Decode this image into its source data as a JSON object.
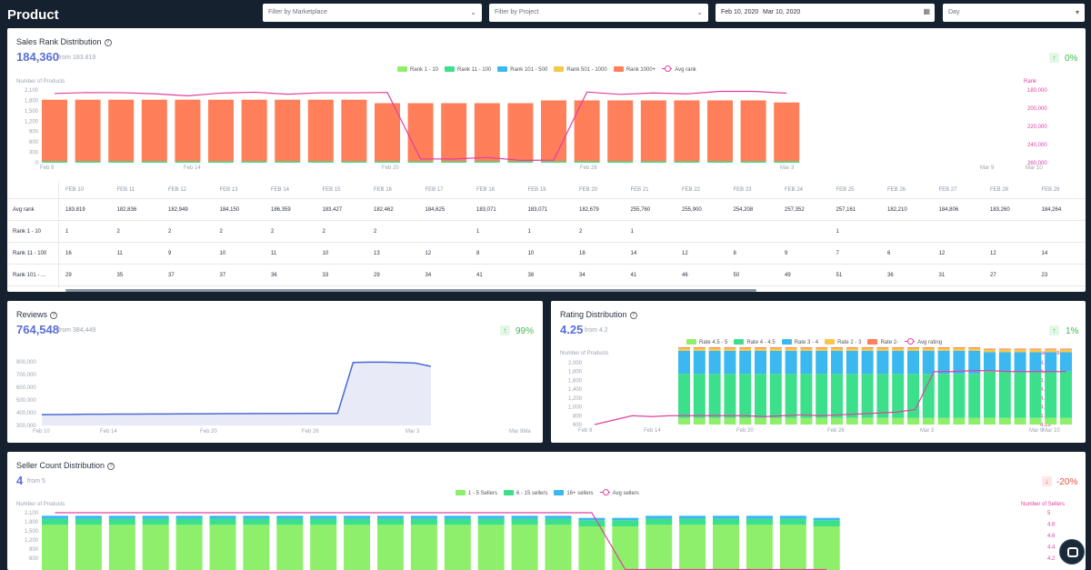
{
  "header": {
    "title": "Product",
    "marketplace_placeholder": "Filter by Marketplace",
    "project_placeholder": "Filter by Project",
    "date_start": "Feb 10, 2020",
    "date_end": "Mar 10, 2020",
    "granularity": "Day"
  },
  "sales_rank": {
    "title": "Sales Rank Distribution",
    "value": "184,360",
    "from": "from 183.819",
    "change": "0%",
    "legend": [
      "Rank 1 - 10",
      "Rank 11 - 100",
      "Rank 101 - 500",
      "Rank 501 - 1000",
      "Rank 1000+",
      "Avg rank"
    ],
    "colors": [
      "#8ef06a",
      "#3de08a",
      "#3bb8f0",
      "#f5c84a",
      "#ff7f5a",
      "#e040a0"
    ],
    "y_left_title": "Number of Products",
    "y_right_title": "Rank",
    "y_left_ticks": [
      "2,100",
      "1,800",
      "1,500",
      "1,200",
      "900",
      "600",
      "300",
      "0"
    ],
    "y_right_ticks": [
      "180,000",
      "200,000",
      "220,000",
      "240,000",
      "260,000"
    ],
    "x_ticks": [
      "Feb 9",
      "Feb 14",
      "Feb 20",
      "Feb 26",
      "Mar 3",
      "Mar 9",
      "Mar 10"
    ],
    "chart_data": {
      "type": "bar",
      "bars": [
        1820,
        1820,
        1820,
        1820,
        1820,
        1820,
        1820,
        1820,
        1820,
        1820,
        1720,
        1720,
        1720,
        1720,
        1720,
        1800,
        1800,
        1800,
        1800,
        1800,
        1800,
        1800,
        1740
      ],
      "avg_rank": [
        183819,
        182836,
        182949,
        184150,
        186359,
        183427,
        182462,
        184625,
        183071,
        183071,
        182679,
        255760,
        255900,
        254208,
        257352,
        257161,
        182210,
        184806,
        183260,
        184264,
        181500,
        181500,
        183500
      ],
      "ylim": [
        0,
        2100
      ],
      "y2lim": [
        180000,
        260000
      ]
    },
    "table": {
      "columns": [
        "FEB 10",
        "FEB 11",
        "FEB 12",
        "FEB 13",
        "FEB 14",
        "FEB 15",
        "FEB 16",
        "FEB 17",
        "FEB 18",
        "FEB 19",
        "FEB 20",
        "FEB 21",
        "FEB 22",
        "FEB 23",
        "FEB 24",
        "FEB 25",
        "FEB 26",
        "FEB 27",
        "FEB 28",
        "FEB 29"
      ],
      "rows": [
        {
          "label": "Avg rank",
          "values": [
            "183.819",
            "182,836",
            "182,949",
            "184,150",
            "186,359",
            "183,427",
            "182,462",
            "184,625",
            "183,071",
            "183,071",
            "182,679",
            "255,760",
            "255,900",
            "254,208",
            "257,352",
            "257,161",
            "182,210",
            "184,806",
            "183,260",
            "184,264"
          ]
        },
        {
          "label": "Rank 1 - 10",
          "values": [
            "1",
            "2",
            "2",
            "2",
            "2",
            "2",
            "2",
            "",
            "1",
            "1",
            "2",
            "1",
            "",
            "",
            "",
            "1",
            "",
            "",
            "",
            ""
          ]
        },
        {
          "label": "Rank 11 - 100",
          "values": [
            "16",
            "11",
            "9",
            "10",
            "11",
            "10",
            "13",
            "12",
            "8",
            "10",
            "18",
            "14",
            "12",
            "8",
            "9",
            "7",
            "6",
            "12",
            "12",
            "14"
          ]
        },
        {
          "label": "Rank 101 - ...",
          "values": [
            "29",
            "35",
            "37",
            "37",
            "36",
            "33",
            "29",
            "34",
            "41",
            "38",
            "34",
            "41",
            "46",
            "50",
            "49",
            "51",
            "36",
            "31",
            "27",
            "23"
          ]
        }
      ]
    }
  },
  "reviews": {
    "title": "Reviews",
    "value": "764,548",
    "from": "from 384,449",
    "change": "99%",
    "y_ticks": [
      "800,000",
      "700,000",
      "600,000",
      "500,000",
      "400,000",
      "300,000"
    ],
    "x_ticks": [
      "Feb 10",
      "Feb 14",
      "Feb 20",
      "Feb 26",
      "Mar 3",
      "Mar 9Ma"
    ],
    "chart_data": {
      "type": "area",
      "values": [
        384449,
        386000,
        387000,
        388000,
        388500,
        389000,
        389500,
        390000,
        390500,
        391000,
        391500,
        392000,
        392500,
        393000,
        393500,
        394000,
        394000,
        395000,
        395000,
        395000,
        795000,
        797000,
        797000,
        795000,
        790000,
        764548
      ],
      "ylim": [
        300000,
        800000
      ]
    }
  },
  "rating": {
    "title": "Rating Distribution",
    "value": "4.25",
    "from": "from 4.2",
    "change": "1%",
    "legend": [
      "Rate 4.5 - 5",
      "Rate 4 - 4.5",
      "Rate 3 - 4",
      "Rate 2 - 3",
      "Rate 2-",
      "Avg rating"
    ],
    "colors": [
      "#8ef06a",
      "#3de08a",
      "#3bb8f0",
      "#f5c84a",
      "#ff7f5a",
      "#e040a0"
    ],
    "y_left_title": "Number of Products",
    "y_right_title": "Stars Rating",
    "y_left_ticks": [
      "2,000",
      "1,800",
      "1,600",
      "1,400",
      "1,200",
      "1,000",
      "800",
      "600"
    ],
    "y_right_ticks": [
      "4.26",
      "4.25",
      "4.24",
      "4.23",
      "4.22",
      "4.21",
      "4.2",
      "4.19"
    ],
    "x_ticks": [
      "Feb 9",
      "Feb 14",
      "Feb 20",
      "Feb 26",
      "Mar 3",
      "Mar 9",
      "Mar 10"
    ],
    "chart_data": {
      "type": "bar",
      "segments": [
        {
          "name": "Rate 4.5 - 5",
          "values": [
            150,
            150,
            150,
            150,
            150,
            150,
            150,
            150,
            150,
            150,
            150,
            150,
            150,
            150,
            150,
            150,
            150,
            150,
            150,
            150,
            150,
            150,
            150,
            150,
            150,
            150
          ]
        },
        {
          "name": "Rate 4 - 4.5",
          "values": [
            1000,
            1000,
            1000,
            1000,
            1000,
            1000,
            1000,
            1000,
            1000,
            1000,
            1000,
            1000,
            1000,
            1000,
            1000,
            1000,
            1000,
            1000,
            1000,
            1000,
            1050,
            1050,
            1050,
            1050,
            1050,
            1050
          ]
        },
        {
          "name": "Rate 3 - 4",
          "values": [
            520,
            520,
            520,
            520,
            520,
            520,
            520,
            520,
            520,
            520,
            520,
            520,
            520,
            520,
            520,
            520,
            520,
            520,
            520,
            520,
            440,
            440,
            440,
            440,
            440,
            440
          ]
        },
        {
          "name": "Rate 2 - 3",
          "values": [
            60,
            60,
            60,
            60,
            60,
            60,
            60,
            60,
            60,
            60,
            60,
            60,
            60,
            60,
            60,
            60,
            60,
            60,
            60,
            60,
            60,
            60,
            60,
            60,
            60,
            60
          ]
        },
        {
          "name": "Rate 2-",
          "values": [
            20,
            20,
            20,
            20,
            20,
            20,
            20,
            20,
            20,
            20,
            20,
            20,
            20,
            20,
            20,
            20,
            20,
            20,
            20,
            20,
            20,
            20,
            20,
            20,
            20,
            20
          ]
        }
      ],
      "avg_rating": [
        4.19,
        4.195,
        4.2,
        4.199,
        4.2,
        4.2,
        4.2,
        4.2,
        4.2,
        4.199,
        4.2,
        4.201,
        4.2,
        4.201,
        4.202,
        4.203,
        4.204,
        4.207,
        4.25,
        4.25,
        4.251,
        4.251,
        4.25,
        4.25,
        4.25,
        4.25
      ],
      "ylim": [
        600,
        2000
      ],
      "y2lim": [
        4.19,
        4.26
      ]
    }
  },
  "sellers": {
    "title": "Seller Count Distribution",
    "value": "4",
    "from": "from 5",
    "change": "-20%",
    "legend": [
      "1 - 5 Sellers",
      "6 - 15 sellers",
      "16+ sellers",
      "Avg sellers"
    ],
    "colors": [
      "#8ef06a",
      "#3de08a",
      "#3bb8f0",
      "#e040a0"
    ],
    "y_left_title": "Number of Products",
    "y_right_title": "Number of Sellers",
    "y_left_ticks": [
      "2,100",
      "1,800",
      "1,500",
      "1,200",
      "900",
      "600"
    ],
    "y_right_ticks": [
      "5",
      "4.8",
      "4.6",
      "4.4",
      "4.2"
    ],
    "chart_data": {
      "type": "bar",
      "segments": [
        {
          "name": "1 - 5 Sellers",
          "values": [
            1700,
            1700,
            1700,
            1700,
            1700,
            1700,
            1700,
            1700,
            1700,
            1700,
            1700,
            1700,
            1700,
            1700,
            1700,
            1700,
            1650,
            1650,
            1700,
            1700,
            1700,
            1700,
            1700,
            1650
          ]
        },
        {
          "name": "6 - 15 sellers",
          "values": [
            200,
            200,
            200,
            200,
            200,
            200,
            200,
            200,
            200,
            200,
            200,
            200,
            200,
            200,
            200,
            200,
            200,
            200,
            200,
            200,
            200,
            200,
            200,
            200
          ]
        },
        {
          "name": "16+ sellers",
          "values": [
            100,
            100,
            100,
            100,
            100,
            100,
            100,
            100,
            100,
            100,
            100,
            100,
            100,
            100,
            100,
            100,
            80,
            80,
            100,
            100,
            100,
            100,
            100,
            80
          ]
        }
      ],
      "avg_sellers": [
        5,
        5,
        5,
        5,
        5,
        5,
        5,
        5,
        5,
        5,
        5,
        5,
        5,
        5,
        5,
        5,
        5,
        4,
        4,
        4,
        4,
        4,
        4,
        4
      ],
      "ylim": [
        600,
        2100
      ],
      "y2lim": [
        4.2,
        5
      ]
    }
  }
}
